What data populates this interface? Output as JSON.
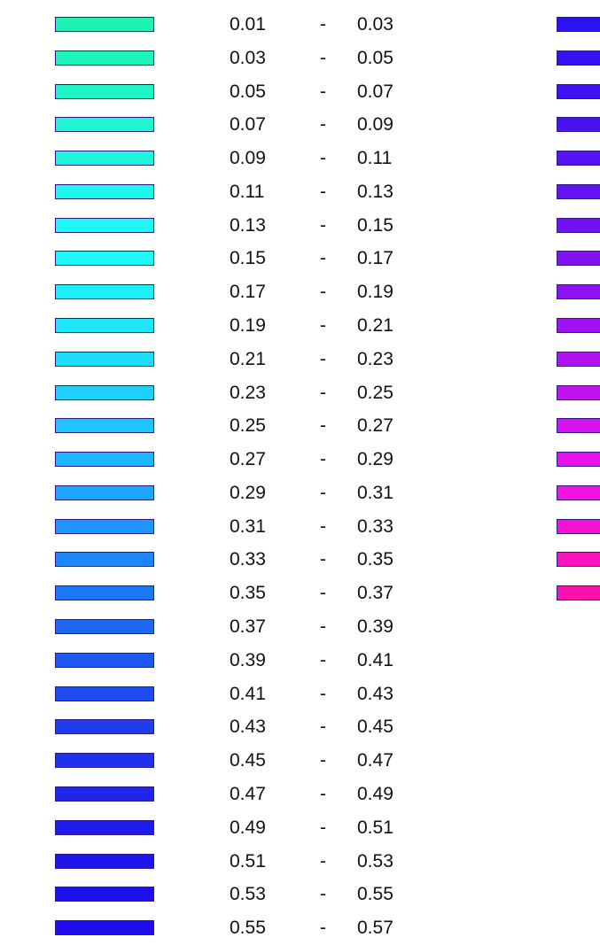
{
  "legend": {
    "separator": "-",
    "left_column": [
      {
        "lo": "0.01",
        "hi": "0.03",
        "color": "#1ef2b2"
      },
      {
        "lo": "0.03",
        "hi": "0.05",
        "color": "#1ef4bc"
      },
      {
        "lo": "0.05",
        "hi": "0.07",
        "color": "#1ef4c6"
      },
      {
        "lo": "0.07",
        "hi": "0.09",
        "color": "#1ef6d0"
      },
      {
        "lo": "0.09",
        "hi": "0.11",
        "color": "#1ef6dc"
      },
      {
        "lo": "0.11",
        "hi": "0.13",
        "color": "#1ef8e8"
      },
      {
        "lo": "0.13",
        "hi": "0.15",
        "color": "#1ef8f2"
      },
      {
        "lo": "0.15",
        "hi": "0.17",
        "color": "#1ef6f8"
      },
      {
        "lo": "0.17",
        "hi": "0.19",
        "color": "#1ef0fa"
      },
      {
        "lo": "0.19",
        "hi": "0.21",
        "color": "#1ee6fa"
      },
      {
        "lo": "0.21",
        "hi": "0.23",
        "color": "#1edcfa"
      },
      {
        "lo": "0.23",
        "hi": "0.25",
        "color": "#1ed0fa"
      },
      {
        "lo": "0.25",
        "hi": "0.27",
        "color": "#1ec4fa"
      },
      {
        "lo": "0.27",
        "hi": "0.29",
        "color": "#1eb6fa"
      },
      {
        "lo": "0.29",
        "hi": "0.31",
        "color": "#1ea6fa"
      },
      {
        "lo": "0.31",
        "hi": "0.33",
        "color": "#1e96fa"
      },
      {
        "lo": "0.33",
        "hi": "0.35",
        "color": "#1e86f8"
      },
      {
        "lo": "0.35",
        "hi": "0.37",
        "color": "#1e76f6"
      },
      {
        "lo": "0.37",
        "hi": "0.39",
        "color": "#1e66f4"
      },
      {
        "lo": "0.39",
        "hi": "0.41",
        "color": "#1e58f2"
      },
      {
        "lo": "0.41",
        "hi": "0.43",
        "color": "#1e4af0"
      },
      {
        "lo": "0.43",
        "hi": "0.45",
        "color": "#1e3eee"
      },
      {
        "lo": "0.45",
        "hi": "0.47",
        "color": "#1e32ee"
      },
      {
        "lo": "0.47",
        "hi": "0.49",
        "color": "#1e26ec"
      },
      {
        "lo": "0.49",
        "hi": "0.51",
        "color": "#1e1cec"
      },
      {
        "lo": "0.51",
        "hi": "0.53",
        "color": "#1e14ec"
      },
      {
        "lo": "0.53",
        "hi": "0.55",
        "color": "#1e10ec"
      },
      {
        "lo": "0.55",
        "hi": "0.57",
        "color": "#1e0cec"
      }
    ],
    "right_column": [
      {
        "color": "#2a12f2"
      },
      {
        "color": "#3412f2"
      },
      {
        "color": "#3e12f2"
      },
      {
        "color": "#4a12f2"
      },
      {
        "color": "#5612f2"
      },
      {
        "color": "#6412f2"
      },
      {
        "color": "#7212f2"
      },
      {
        "color": "#8012f2"
      },
      {
        "color": "#9012f2"
      },
      {
        "color": "#a012f2"
      },
      {
        "color": "#b212f0"
      },
      {
        "color": "#c412ee"
      },
      {
        "color": "#d812ec"
      },
      {
        "color": "#e812e8"
      },
      {
        "color": "#f412de"
      },
      {
        "color": "#f812ce"
      },
      {
        "color": "#fa12be"
      },
      {
        "color": "#fa12ae"
      }
    ]
  }
}
